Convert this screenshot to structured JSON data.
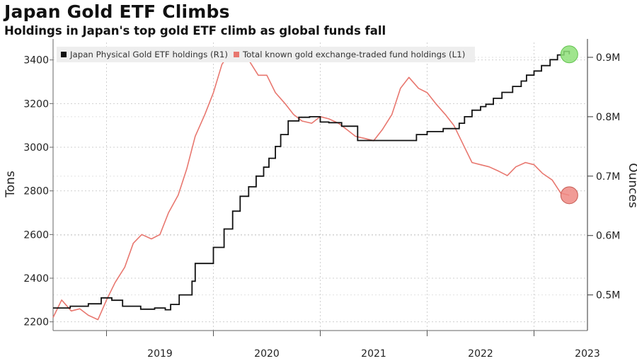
{
  "title": "Japan Gold ETF Climbs",
  "subtitle": "Holdings in Japan's top gold ETF climb as global funds fall",
  "legend": {
    "black_label": "Japan Physical Gold ETF holdings (R1)",
    "red_label": "Total known gold exchange-traded fund holdings (L1)"
  },
  "colors": {
    "black_series": "#111111",
    "red_series": "#e8776f",
    "green_marker": "#8fe07a",
    "red_marker": "#ef8a84",
    "grid": "#cfcfcf"
  },
  "chart_data": {
    "type": "line",
    "title": "Japan Gold ETF Climbs",
    "subtitle": "Holdings in Japan's top gold ETF climb as global funds fall",
    "x_ticks": [
      "2019",
      "2020",
      "2021",
      "2022",
      "2023"
    ],
    "xlim": [
      2018.5,
      2023.5
    ],
    "left_axis": {
      "label": "Tons",
      "ticks": [
        2200,
        2400,
        2600,
        2800,
        3000,
        3200,
        3400
      ],
      "ylim": [
        2160,
        3480
      ]
    },
    "right_axis": {
      "label": "Ounces",
      "ticks": [
        0.5,
        0.6,
        0.7,
        0.8,
        0.9
      ],
      "tick_labels": [
        "0.5M",
        "0.6M",
        "0.7M",
        "0.8M",
        "0.9M"
      ],
      "ylim": [
        0.44,
        0.925
      ],
      "unit": "M"
    },
    "grid": true,
    "legend_position": "top",
    "series": [
      {
        "name": "Total known gold exchange-traded fund holdings (L1)",
        "axis": "left",
        "x": [
          2018.5,
          2018.58,
          2018.67,
          2018.75,
          2018.83,
          2018.92,
          2019.0,
          2019.08,
          2019.17,
          2019.25,
          2019.33,
          2019.42,
          2019.5,
          2019.58,
          2019.67,
          2019.75,
          2019.83,
          2019.92,
          2020.0,
          2020.08,
          2020.17,
          2020.25,
          2020.33,
          2020.42,
          2020.5,
          2020.58,
          2020.67,
          2020.75,
          2020.83,
          2020.92,
          2021.0,
          2021.08,
          2021.17,
          2021.25,
          2021.33,
          2021.42,
          2021.5,
          2021.58,
          2021.67,
          2021.75,
          2021.83,
          2021.92,
          2022.0,
          2022.08,
          2022.17,
          2022.25,
          2022.33,
          2022.42,
          2022.5,
          2022.58,
          2022.67,
          2022.75,
          2022.83,
          2022.92,
          2023.0,
          2023.08,
          2023.17,
          2023.25,
          2023.33
        ],
        "values": [
          2220,
          2300,
          2250,
          2260,
          2230,
          2210,
          2300,
          2380,
          2450,
          2560,
          2600,
          2580,
          2600,
          2700,
          2780,
          2900,
          3050,
          3150,
          3250,
          3380,
          3440,
          3450,
          3400,
          3330,
          3330,
          3250,
          3200,
          3150,
          3120,
          3110,
          3140,
          3130,
          3110,
          3080,
          3050,
          3040,
          3030,
          3080,
          3150,
          3270,
          3320,
          3270,
          3250,
          3200,
          3150,
          3100,
          3020,
          2930,
          2920,
          2910,
          2890,
          2870,
          2910,
          2930,
          2920,
          2880,
          2850,
          2790,
          2780
        ]
      },
      {
        "name": "Japan Physical Gold ETF holdings (R1)",
        "axis": "right",
        "x": [
          2018.5,
          2018.66,
          2018.83,
          2018.95,
          2019.05,
          2019.15,
          2019.25,
          2019.32,
          2019.45,
          2019.55,
          2019.6,
          2019.68,
          2019.8,
          2019.83,
          2019.87,
          2019.92,
          2020.0,
          2020.1,
          2020.18,
          2020.25,
          2020.33,
          2020.4,
          2020.47,
          2020.52,
          2020.58,
          2020.63,
          2020.7,
          2020.8,
          2020.9,
          2021.0,
          2021.08,
          2021.2,
          2021.35,
          2021.45,
          2021.7,
          2021.9,
          2022.0,
          2022.15,
          2022.3,
          2022.35,
          2022.42,
          2022.5,
          2022.55,
          2022.62,
          2022.7,
          2022.8,
          2022.88,
          2022.93,
          2023.0,
          2023.07,
          2023.15,
          2023.22,
          2023.28,
          2023.33
        ],
        "values": [
          0.478,
          0.481,
          0.485,
          0.495,
          0.491,
          0.481,
          0.481,
          0.476,
          0.478,
          0.475,
          0.484,
          0.5,
          0.523,
          0.553,
          0.553,
          0.553,
          0.58,
          0.611,
          0.641,
          0.666,
          0.682,
          0.7,
          0.715,
          0.73,
          0.75,
          0.77,
          0.793,
          0.799,
          0.8,
          0.791,
          0.79,
          0.784,
          0.76,
          0.76,
          0.76,
          0.77,
          0.775,
          0.78,
          0.789,
          0.8,
          0.811,
          0.817,
          0.821,
          0.831,
          0.841,
          0.851,
          0.86,
          0.87,
          0.877,
          0.886,
          0.896,
          0.904,
          0.91,
          0.905
        ]
      }
    ],
    "end_markers": [
      {
        "series": "Japan Physical Gold ETF holdings (R1)",
        "color": "#8fe07a"
      },
      {
        "series": "Total known gold exchange-traded fund holdings (L1)",
        "color": "#ef8a84"
      }
    ]
  }
}
